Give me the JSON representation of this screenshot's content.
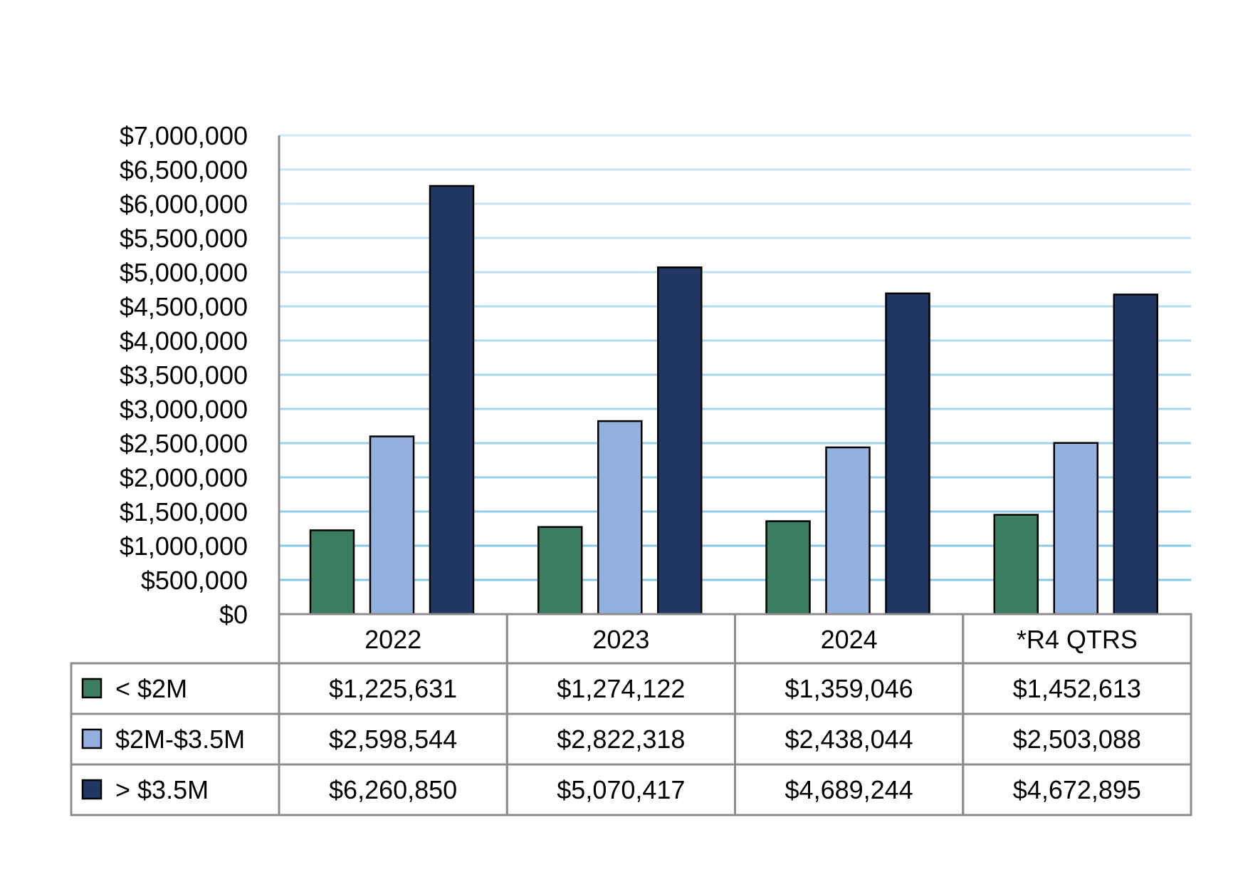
{
  "chart_data": {
    "type": "bar",
    "categories": [
      "2022",
      "2023",
      "2024",
      "*R4 QTRS"
    ],
    "series": [
      {
        "name": "< $2M",
        "values": [
          1225631,
          1274122,
          1359046,
          1452613
        ]
      },
      {
        "name": "$2M-$3.5M",
        "values": [
          2598544,
          2822318,
          2438044,
          2503088
        ]
      },
      {
        "name": "> $3.5M",
        "values": [
          6260850,
          5070417,
          4689244,
          4672895
        ]
      }
    ],
    "ylim": [
      0,
      7000000
    ],
    "y_ticks": [
      "$0",
      "$500,000",
      "$1,000,000",
      "$1,500,000",
      "$2,000,000",
      "$2,500,000",
      "$3,000,000",
      "$3,500,000",
      "$4,000,000",
      "$4,500,000",
      "$5,000,000",
      "$5,500,000",
      "$6,000,000",
      "$6,500,000",
      "$7,000,000"
    ],
    "data_table": {
      "rows": [
        [
          "$1,225,631",
          "$1,274,122",
          "$1,359,046",
          "$1,452,613"
        ],
        [
          "$2,598,544",
          "$2,822,318",
          "$2,438,044",
          "$2,503,088"
        ],
        [
          "$6,260,850",
          "$5,070,417",
          "$4,689,244",
          "$4,672,895"
        ]
      ]
    },
    "grid": true,
    "legend": "data-table",
    "colors": [
      "#3a7d61",
      "#94b0df",
      "#213862"
    ],
    "gridline_color": "#7fc4e0",
    "table_border_color": "#8c8c8c"
  }
}
